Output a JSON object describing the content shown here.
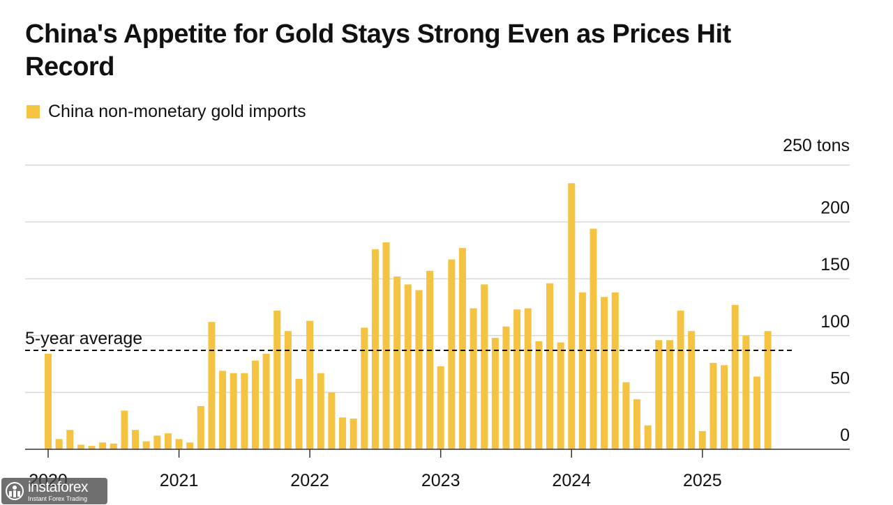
{
  "title": "China's Appetite for Gold Stays Strong Even as Prices Hit Record",
  "colors": {
    "bar": "#f5c342",
    "grid": "#d9d9d9",
    "axis": "#333333",
    "text": "#111111",
    "average": "#111111"
  },
  "watermark": {
    "brand": "instaforex",
    "tagline": "Instant Forex Trading",
    "logo_icon": "instaforex-logo-icon"
  },
  "chart_data": {
    "type": "bar",
    "title": "China's Appetite for Gold Stays Strong Even as Prices Hit Record",
    "legend": [
      {
        "label": "China non-monetary gold imports",
        "color": "#f5c342"
      }
    ],
    "y_unit_label": "250 tons",
    "ylim": [
      0,
      250
    ],
    "y_ticks": [
      0,
      50,
      100,
      150,
      200,
      250
    ],
    "y_tick_labels": [
      "0",
      "50",
      "100",
      "150",
      "200",
      "250 tons"
    ],
    "y_axis_side": "right",
    "grid": true,
    "x_tick_labels": [
      "2020",
      "2021",
      "2022",
      "2023",
      "2024",
      "2025"
    ],
    "x_tick_months": [
      0,
      12,
      24,
      36,
      48,
      60
    ],
    "average": {
      "label": "5-year average",
      "value": 87
    },
    "start": "2020-01",
    "values": [
      84,
      9,
      17,
      4,
      3,
      6,
      5,
      34,
      17,
      7,
      12,
      14,
      9,
      6,
      38,
      112,
      69,
      67,
      67,
      78,
      84,
      122,
      104,
      62,
      113,
      67,
      50,
      28,
      27,
      107,
      176,
      182,
      152,
      145,
      140,
      157,
      73,
      167,
      177,
      124,
      145,
      98,
      108,
      123,
      124,
      95,
      146,
      94,
      234,
      138,
      194,
      134,
      138,
      59,
      44,
      21,
      96,
      96,
      122,
      104,
      16,
      76,
      74,
      127,
      100,
      64,
      104
    ]
  }
}
